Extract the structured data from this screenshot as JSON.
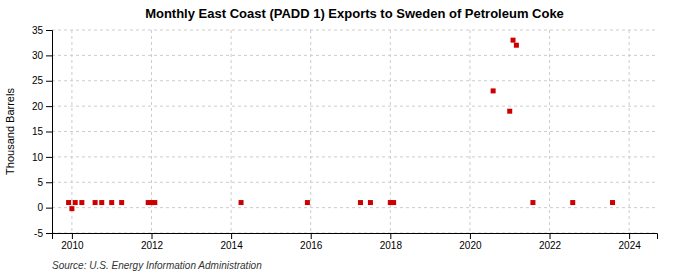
{
  "chart_data": {
    "type": "scatter",
    "title": "Monthly East Coast (PADD 1) Exports to Sweden of Petroleum Coke",
    "ylabel": "Thousand Barrels",
    "source": "Source: U.S. Energy Information Administration",
    "x": [
      2009.917,
      2010.0,
      2010.083,
      2010.25,
      2010.583,
      2010.75,
      2011.0,
      2011.25,
      2011.917,
      2012.0,
      2012.083,
      2014.25,
      2015.917,
      2017.25,
      2017.5,
      2018.0,
      2018.083,
      2020.583,
      2021.0,
      2021.083,
      2021.167,
      2021.583,
      2022.583,
      2023.583
    ],
    "values": [
      1.0,
      -0.2,
      1.0,
      1.0,
      1.0,
      1.0,
      1.0,
      1.0,
      1.0,
      1.0,
      1.0,
      1.0,
      1.0,
      1.0,
      1.0,
      1.0,
      1.0,
      23.0,
      19.0,
      33.0,
      32.0,
      1.0,
      1.0,
      1.0
    ],
    "color": "#cc0000",
    "marker": "square",
    "xlim": [
      2009.5,
      2024.7
    ],
    "xticks": [
      2010,
      2012,
      2014,
      2016,
      2018,
      2020,
      2022,
      2024
    ],
    "ylim": [
      -5,
      35
    ],
    "yticks": [
      -5,
      0,
      5,
      10,
      15,
      20,
      25,
      30,
      35
    ],
    "grid": true
  }
}
